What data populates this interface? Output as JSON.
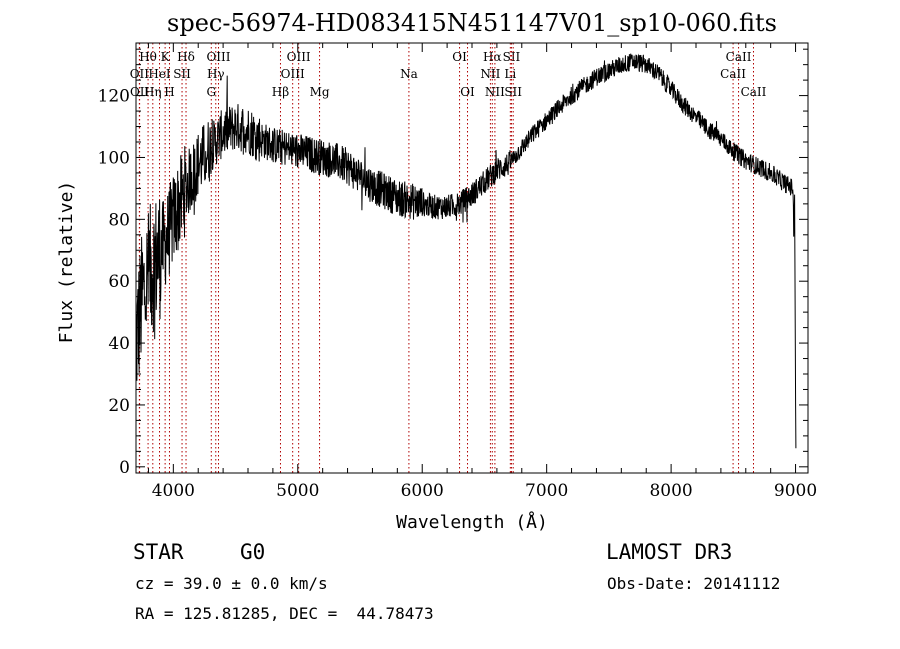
{
  "chart_data": {
    "type": "line",
    "title": "spec-56974-HD083415N451147V01_sp10-060.fits",
    "xlabel": "Wavelength (Å)",
    "ylabel": "Flux (relative)",
    "xlim": [
      3700,
      9100
    ],
    "ylim": [
      -2,
      137
    ],
    "xticks": [
      4000,
      5000,
      6000,
      7000,
      8000,
      9000
    ],
    "yticks": [
      0,
      20,
      40,
      60,
      80,
      100,
      120
    ],
    "series": [
      {
        "name": "spectrum",
        "anchors": [
          [
            3700,
            40
          ],
          [
            3750,
            55
          ],
          [
            3800,
            62
          ],
          [
            3850,
            66
          ],
          [
            3900,
            70
          ],
          [
            3950,
            74
          ],
          [
            4000,
            80
          ],
          [
            4100,
            90
          ],
          [
            4200,
            98
          ],
          [
            4300,
            103
          ],
          [
            4400,
            108
          ],
          [
            4500,
            110
          ],
          [
            4600,
            109
          ],
          [
            4700,
            106
          ],
          [
            4800,
            104
          ],
          [
            4900,
            103
          ],
          [
            5000,
            102
          ],
          [
            5100,
            101
          ],
          [
            5200,
            100
          ],
          [
            5300,
            99
          ],
          [
            5400,
            97
          ],
          [
            5500,
            94
          ],
          [
            5600,
            91
          ],
          [
            5700,
            89
          ],
          [
            5800,
            87
          ],
          [
            5900,
            86
          ],
          [
            6000,
            85
          ],
          [
            6100,
            84
          ],
          [
            6200,
            84
          ],
          [
            6300,
            85
          ],
          [
            6400,
            88
          ],
          [
            6500,
            92
          ],
          [
            6600,
            96
          ],
          [
            6700,
            98
          ],
          [
            6800,
            103
          ],
          [
            6900,
            108
          ],
          [
            7000,
            112
          ],
          [
            7100,
            116
          ],
          [
            7200,
            120
          ],
          [
            7300,
            123
          ],
          [
            7400,
            126
          ],
          [
            7500,
            128
          ],
          [
            7600,
            130
          ],
          [
            7700,
            131
          ],
          [
            7800,
            130
          ],
          [
            7900,
            127
          ],
          [
            8000,
            122
          ],
          [
            8100,
            117
          ],
          [
            8200,
            113
          ],
          [
            8300,
            109
          ],
          [
            8400,
            106
          ],
          [
            8500,
            102
          ],
          [
            8600,
            99
          ],
          [
            8700,
            97
          ],
          [
            8800,
            95
          ],
          [
            8900,
            92
          ],
          [
            8980,
            90
          ],
          [
            9000,
            20
          ]
        ]
      }
    ],
    "line_markers": [
      {
        "label": "Hθ",
        "wavelength": 3797,
        "row": 1
      },
      {
        "label": "OII",
        "wavelength": 3727,
        "row": 2
      },
      {
        "label": "OII",
        "wavelength": 3729,
        "row": 3
      },
      {
        "label": "K",
        "wavelength": 3934,
        "row": 1
      },
      {
        "label": "HeI",
        "wavelength": 3889,
        "row": 2
      },
      {
        "label": "Hη",
        "wavelength": 3835,
        "row": 3
      },
      {
        "label": "Hδ",
        "wavelength": 4102,
        "row": 1
      },
      {
        "label": "SII",
        "wavelength": 4070,
        "row": 2
      },
      {
        "label": "H",
        "wavelength": 3969,
        "row": 3
      },
      {
        "label": "OIII",
        "wavelength": 4363,
        "row": 1
      },
      {
        "label": "Hγ",
        "wavelength": 4341,
        "row": 2
      },
      {
        "label": "G",
        "wavelength": 4305,
        "row": 3
      },
      {
        "label": "Hβ",
        "wavelength": 4861,
        "row": 3
      },
      {
        "label": "OIII",
        "wavelength": 5007,
        "row": 1
      },
      {
        "label": "OIII",
        "wavelength": 4959,
        "row": 2
      },
      {
        "label": "Mg",
        "wavelength": 5175,
        "row": 3
      },
      {
        "label": "Na",
        "wavelength": 5893,
        "row": 2
      },
      {
        "label": "OI",
        "wavelength": 6300,
        "row": 1
      },
      {
        "label": "OI",
        "wavelength": 6364,
        "row": 3
      },
      {
        "label": "Hα",
        "wavelength": 6563,
        "row": 1
      },
      {
        "label": "NII",
        "wavelength": 6548,
        "row": 2
      },
      {
        "label": "NII",
        "wavelength": 6584,
        "row": 3
      },
      {
        "label": "SII",
        "wavelength": 6717,
        "row": 1
      },
      {
        "label": "Li",
        "wavelength": 6708,
        "row": 2
      },
      {
        "label": "SII",
        "wavelength": 6731,
        "row": 3
      },
      {
        "label": "CaII",
        "wavelength": 8542,
        "row": 1
      },
      {
        "label": "CaII",
        "wavelength": 8498,
        "row": 2
      },
      {
        "label": "CaII",
        "wavelength": 8662,
        "row": 3
      }
    ]
  },
  "info": {
    "object_class": "STAR",
    "subclass": "G0",
    "survey": "LAMOST DR3",
    "cz": "cz = 39.0 ± 0.0 km/s",
    "obs_date": "Obs-Date: 20141112",
    "coords": "RA = 125.81285, DEC =  44.78473"
  }
}
